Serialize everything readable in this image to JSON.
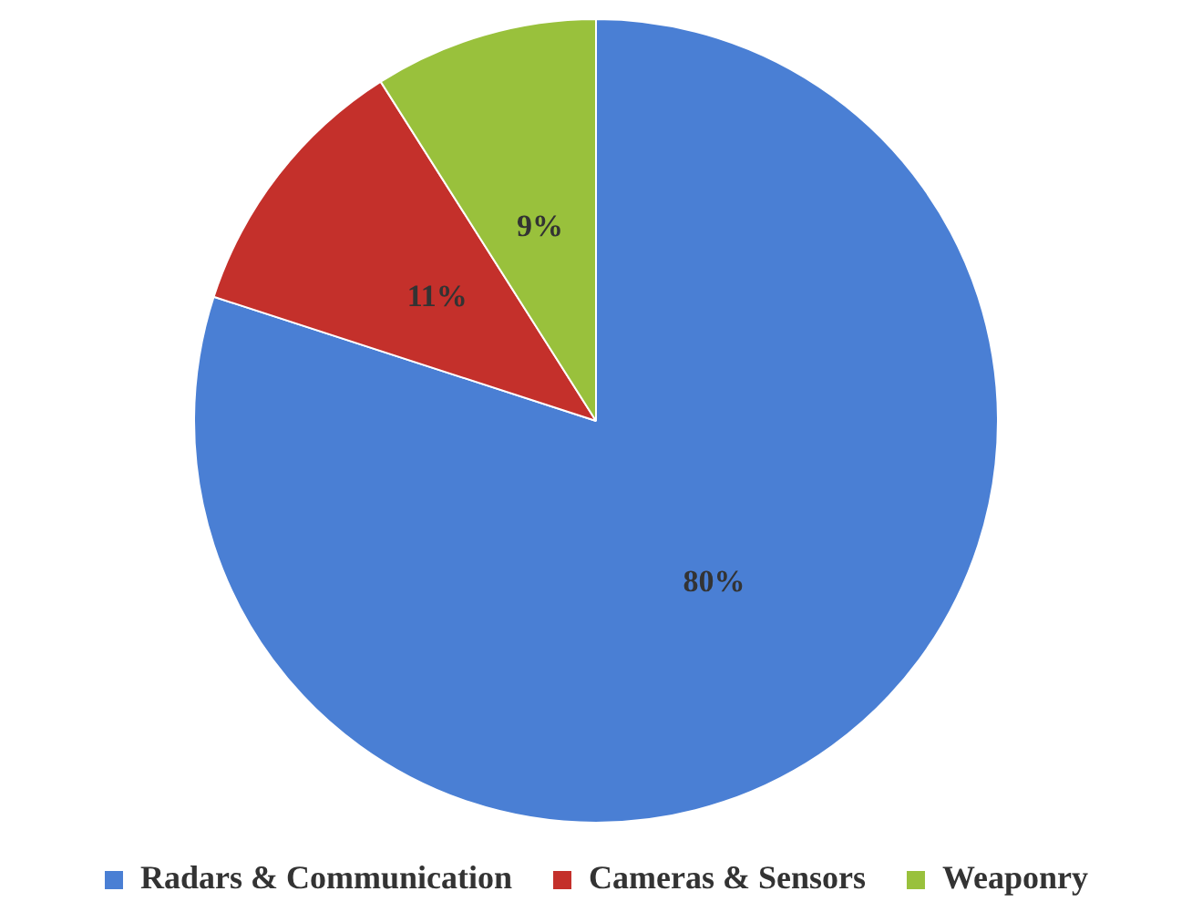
{
  "chart_data": {
    "type": "pie",
    "categories": [
      "Radars & Communication",
      "Cameras & Sensors",
      "Weaponry"
    ],
    "values": [
      80,
      11,
      9
    ],
    "value_labels": [
      "80%",
      "11%",
      "9%"
    ],
    "colors": [
      "#4a7fd4",
      "#c4302b",
      "#99c13c"
    ],
    "legend": "bottom"
  }
}
